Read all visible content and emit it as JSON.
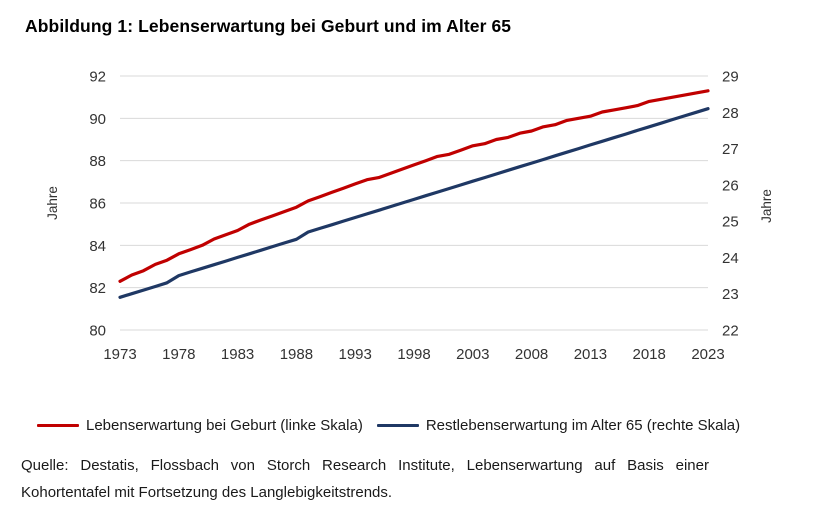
{
  "title": "Abbildung 1: Lebenserwartung bei Geburt und im Alter 65",
  "source_note": "Quelle: Destatis, Flossbach von Storch Research Institute, Lebenserwartung auf Basis einer Kohortentafel mit Fortsetzung des Langlebigkeitstrends.",
  "colors": {
    "series_birth": "#C00000",
    "series_age65": "#1F3864",
    "gridline": "#D9D9D9",
    "axis_text": "#333333"
  },
  "chart_data": {
    "type": "line",
    "title": "Abbildung 1: Lebenserwartung bei Geburt und im Alter 65",
    "grid": "horizontal",
    "legend_position": "bottom",
    "x": [
      1973,
      1974,
      1975,
      1976,
      1977,
      1978,
      1979,
      1980,
      1981,
      1982,
      1983,
      1984,
      1985,
      1986,
      1987,
      1988,
      1989,
      1990,
      1991,
      1992,
      1993,
      1994,
      1995,
      1996,
      1997,
      1998,
      1999,
      2000,
      2001,
      2002,
      2003,
      2004,
      2005,
      2006,
      2007,
      2008,
      2009,
      2010,
      2011,
      2012,
      2013,
      2014,
      2015,
      2016,
      2017,
      2018,
      2019,
      2020,
      2021,
      2022,
      2023
    ],
    "x_tick_labels": [
      1973,
      1978,
      1983,
      1988,
      1993,
      1998,
      2003,
      2008,
      2013,
      2018,
      2023
    ],
    "left_axis": {
      "label": "Jahre",
      "min": 80,
      "max": 92,
      "ticks": [
        80,
        82,
        84,
        86,
        88,
        90,
        92
      ]
    },
    "right_axis": {
      "label": "Jahre",
      "min": 22,
      "max": 29,
      "ticks": [
        22,
        23,
        24,
        25,
        26,
        27,
        28,
        29
      ]
    },
    "series": [
      {
        "name": "Lebenserwartung bei Geburt (linke Skala)",
        "axis": "left",
        "color": "#C00000",
        "values": [
          82.3,
          82.6,
          82.8,
          83.1,
          83.3,
          83.6,
          83.8,
          84.0,
          84.3,
          84.5,
          84.7,
          85.0,
          85.2,
          85.4,
          85.6,
          85.8,
          86.1,
          86.3,
          86.5,
          86.7,
          86.9,
          87.1,
          87.2,
          87.4,
          87.6,
          87.8,
          88.0,
          88.2,
          88.3,
          88.5,
          88.7,
          88.8,
          89.0,
          89.1,
          89.3,
          89.4,
          89.6,
          89.7,
          89.9,
          90.0,
          90.1,
          90.3,
          90.4,
          90.5,
          90.6,
          90.8,
          90.9,
          91.0,
          91.1,
          91.2,
          91.3
        ]
      },
      {
        "name": "Restlebenserwartung im Alter 65 (rechte Skala)",
        "axis": "right",
        "color": "#1F3864",
        "values": [
          22.9,
          23.0,
          23.1,
          23.2,
          23.3,
          23.5,
          23.6,
          23.7,
          23.8,
          23.9,
          24.0,
          24.1,
          24.2,
          24.3,
          24.4,
          24.5,
          24.7,
          24.8,
          24.9,
          25.0,
          25.1,
          25.2,
          25.3,
          25.4,
          25.5,
          25.6,
          25.7,
          25.8,
          25.9,
          26.0,
          26.1,
          26.2,
          26.3,
          26.4,
          26.5,
          26.6,
          26.7,
          26.8,
          26.9,
          27.0,
          27.1,
          27.2,
          27.3,
          27.4,
          27.5,
          27.6,
          27.7,
          27.8,
          27.9,
          28.0,
          28.1
        ]
      }
    ]
  }
}
